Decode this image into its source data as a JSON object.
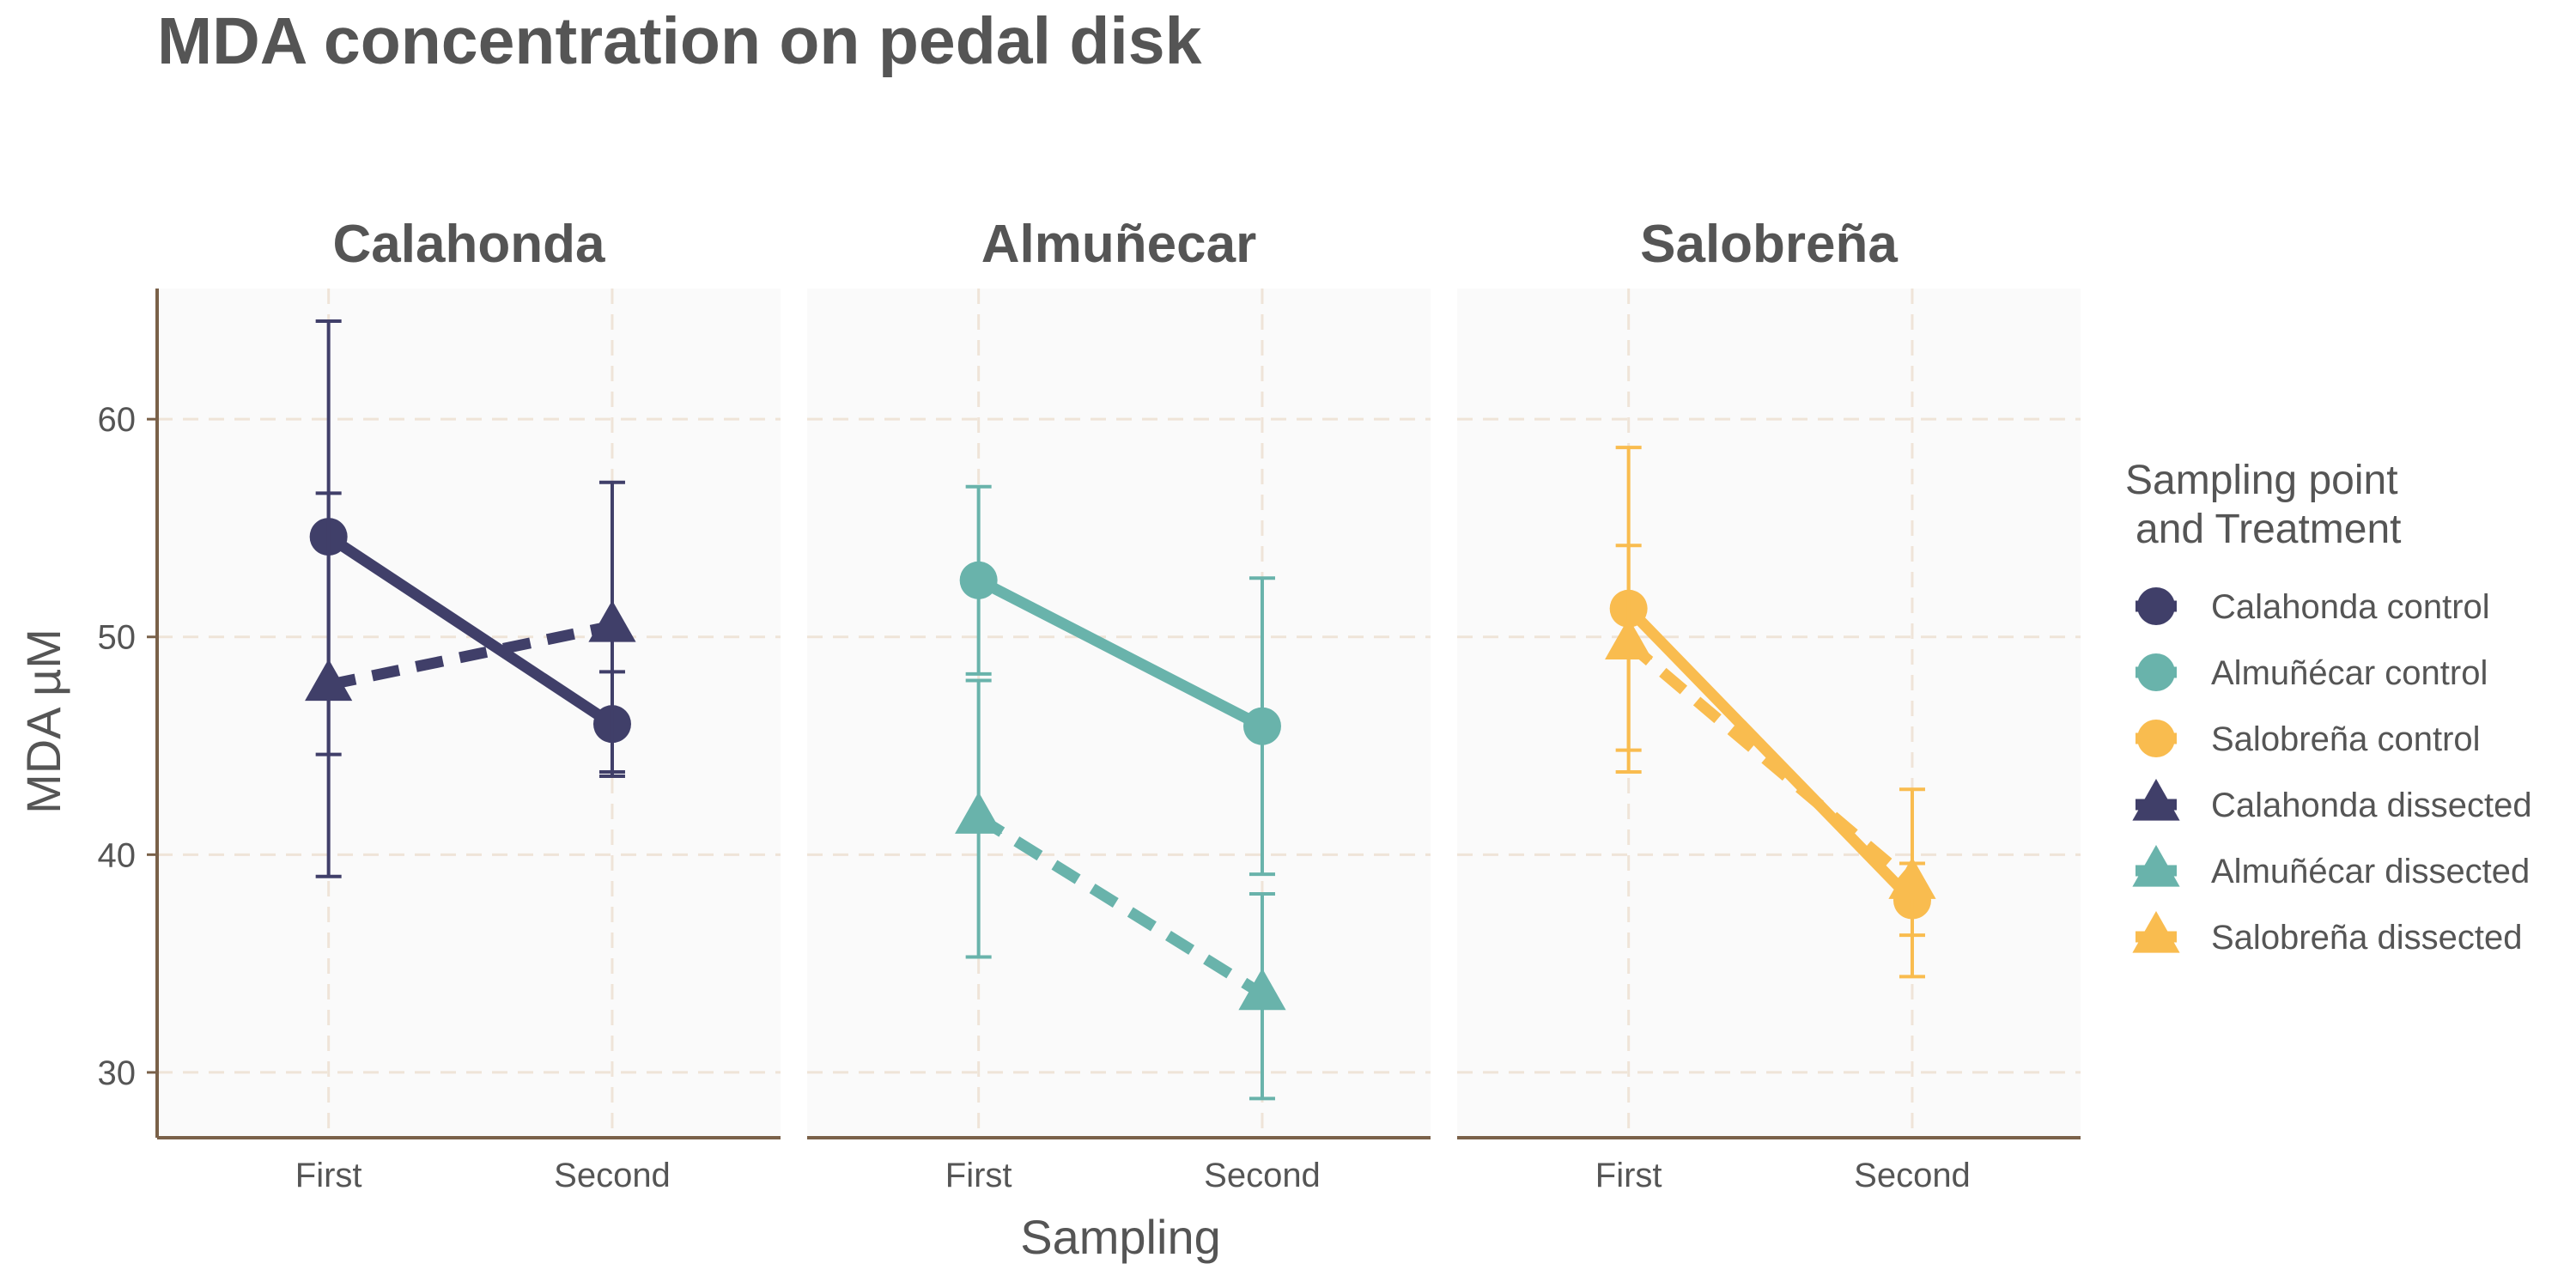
{
  "chart_data": {
    "type": "line",
    "title": "MDA concentration on pedal disk",
    "xlabel": "Sampling",
    "ylabel": "MDA µM",
    "ylim": [
      27,
      66
    ],
    "yticks": [
      30,
      40,
      50,
      60
    ],
    "categories": [
      "First",
      "Second"
    ],
    "grid": true,
    "legend_position": "right",
    "legend_title_lines": [
      "Sampling point",
      "and Treatment"
    ],
    "colors": {
      "Calahonda": "#403F69",
      "Almuñecar": "#69B3AB",
      "Salobreña": "#F9BC4F",
      "panel_bg": "#FAFAFA",
      "grid": "#EFE4D8",
      "axis": "#7A6149"
    },
    "facets": [
      {
        "title": "Calahonda",
        "color": "#403F69",
        "series": [
          {
            "name": "Calahonda control",
            "treatment": "control",
            "values": [
              54.6,
              46.0
            ],
            "error_low": [
              44.6,
              43.6
            ],
            "error_high": [
              64.5,
              48.4
            ]
          },
          {
            "name": "Calahonda dissected",
            "treatment": "dissected",
            "values": [
              47.8,
              50.5
            ],
            "error_low": [
              39.0,
              43.8
            ],
            "error_high": [
              56.6,
              57.1
            ]
          }
        ]
      },
      {
        "title": "Almuñecar",
        "color": "#69B3AB",
        "series": [
          {
            "name": "Almuñécar control",
            "treatment": "control",
            "values": [
              52.6,
              45.9
            ],
            "error_low": [
              48.3,
              39.1
            ],
            "error_high": [
              56.9,
              52.7
            ]
          },
          {
            "name": "Almuñécar dissected",
            "treatment": "dissected",
            "values": [
              41.7,
              33.6
            ],
            "error_low": [
              35.3,
              28.8
            ],
            "error_high": [
              48.0,
              38.2
            ]
          }
        ]
      },
      {
        "title": "Salobreña",
        "color": "#F9BC4F",
        "series": [
          {
            "name": "Salobreña control",
            "treatment": "control",
            "values": [
              51.3,
              37.9
            ],
            "error_low": [
              44.8,
              36.3
            ],
            "error_high": [
              58.7,
              39.6
            ]
          },
          {
            "name": "Salobreña dissected",
            "treatment": "dissected",
            "values": [
              49.7,
              38.7
            ],
            "error_low": [
              43.8,
              34.4
            ],
            "error_high": [
              54.2,
              43.0
            ]
          }
        ]
      }
    ],
    "legend": [
      {
        "label": "Calahonda control",
        "color": "#403F69",
        "shape": "circle"
      },
      {
        "label": "Almuñécar control",
        "color": "#69B3AB",
        "shape": "circle"
      },
      {
        "label": "Salobreña control",
        "color": "#F9BC4F",
        "shape": "circle"
      },
      {
        "label": "Calahonda dissected",
        "color": "#403F69",
        "shape": "triangle"
      },
      {
        "label": "Almuñécar dissected",
        "color": "#69B3AB",
        "shape": "triangle"
      },
      {
        "label": "Salobreña dissected",
        "color": "#F9BC4F",
        "shape": "triangle"
      }
    ]
  }
}
